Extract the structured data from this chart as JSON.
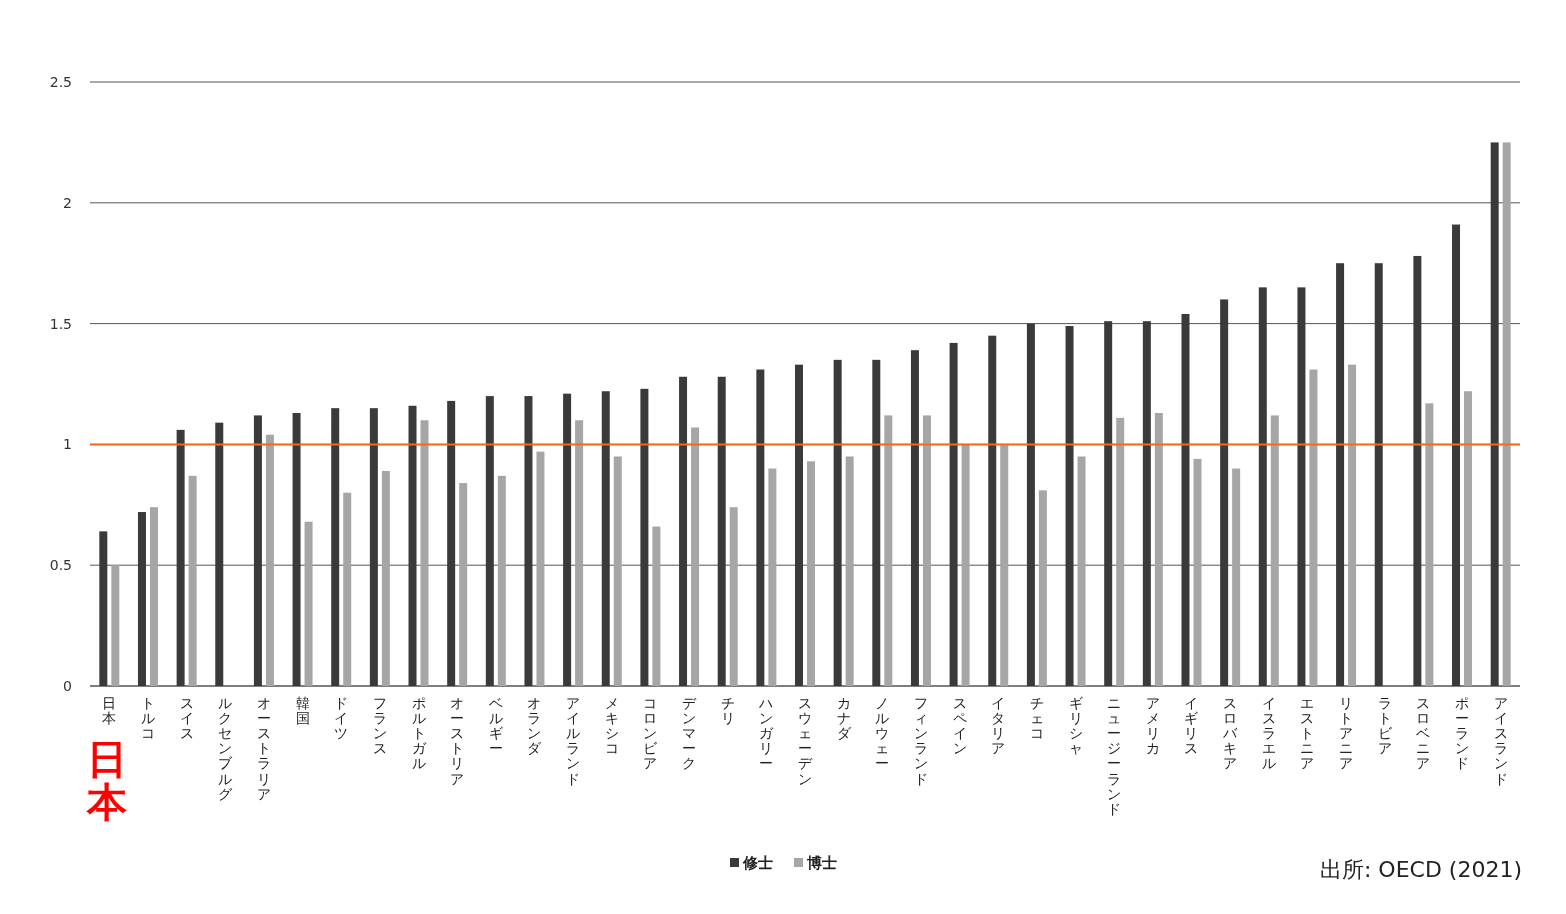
{
  "chart_data": {
    "type": "bar",
    "categories": [
      "日本",
      "トルコ",
      "スイス",
      "ルクセンブルグ",
      "オーストラリア",
      "韓国",
      "ドイツ",
      "フランス",
      "ポルトガル",
      "オーストリア",
      "ベルギー",
      "オランダ",
      "アイルランド",
      "メキシコ",
      "コロンビア",
      "デンマーク",
      "チリ",
      "ハンガリー",
      "スウェーデン",
      "カナダ",
      "ノルウェー",
      "フィンランド",
      "スペイン",
      "イタリア",
      "チェコ",
      "ギリシャ",
      "ニュージーランド",
      "アメリカ",
      "イギリス",
      "スロバキア",
      "イスラエル",
      "エストニア",
      "リトアニア",
      "ラトビア",
      "スロベニア",
      "ポーランド",
      "アイスランド"
    ],
    "series": [
      {
        "name": "修士",
        "color": "#3a3a3a",
        "values": [
          0.64,
          0.72,
          1.06,
          1.09,
          1.12,
          1.13,
          1.15,
          1.15,
          1.16,
          1.18,
          1.2,
          1.2,
          1.21,
          1.22,
          1.23,
          1.28,
          1.28,
          1.31,
          1.33,
          1.35,
          1.35,
          1.39,
          1.42,
          1.45,
          1.5,
          1.49,
          1.51,
          1.51,
          1.54,
          1.6,
          1.65,
          1.65,
          1.75,
          1.75,
          1.78,
          1.91,
          2.25
        ]
      },
      {
        "name": "博士",
        "color": "#a6a6a6",
        "values": [
          0.5,
          0.74,
          0.87,
          null,
          1.04,
          0.68,
          0.8,
          0.89,
          1.1,
          0.84,
          0.87,
          0.97,
          1.1,
          0.95,
          0.66,
          1.07,
          0.74,
          0.9,
          0.93,
          0.95,
          1.12,
          1.12,
          1.0,
          1.0,
          0.81,
          0.95,
          1.11,
          1.13,
          0.94,
          0.9,
          1.12,
          1.31,
          1.33,
          null,
          1.17,
          1.22,
          2.25
        ]
      }
    ],
    "ylim": [
      0,
      2.5
    ],
    "yticks": [
      0,
      0.5,
      1,
      1.5,
      2,
      2.5
    ],
    "grid": "y",
    "legend": "bottom",
    "ref_lines": [
      {
        "axis": "y",
        "value": 1,
        "color": "#f26b1d"
      }
    ],
    "annotations": [
      "日本",
      "出所: OECD (2021)"
    ]
  }
}
